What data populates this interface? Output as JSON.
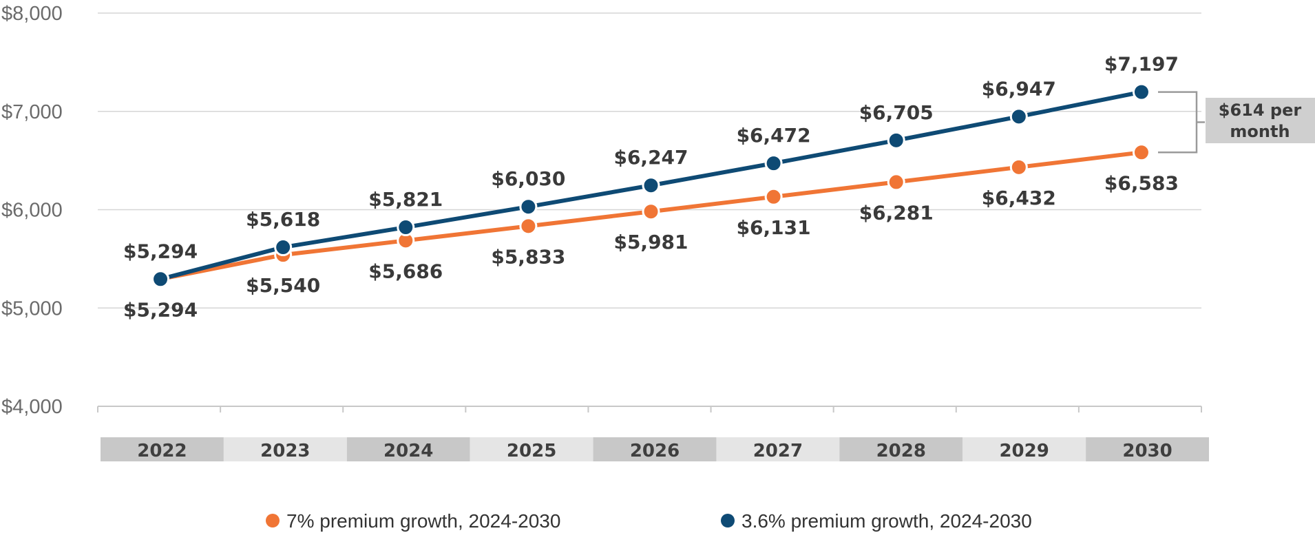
{
  "chart_data": {
    "type": "line",
    "title": "",
    "xlabel": "",
    "ylabel": "",
    "ylim": [
      4000,
      8000
    ],
    "yticks": [
      "$4,000",
      "$5,000",
      "$6,000",
      "$7,000",
      "$8,000"
    ],
    "grid": true,
    "legend_position": "bottom",
    "categories": [
      "2022",
      "2023",
      "2024",
      "2025",
      "2026",
      "2027",
      "2028",
      "2029",
      "2030"
    ],
    "series": [
      {
        "name": "7% premium growth, 2024-2030",
        "color": "#F07535",
        "values": [
          5294,
          5540,
          5686,
          5833,
          5981,
          6131,
          6281,
          6432,
          6583
        ],
        "labels": [
          "$5,294",
          "$5,540",
          "$5,686",
          "$5,833",
          "$5,981",
          "$6,131",
          "$6,281",
          "$6,432",
          "$6,583"
        ]
      },
      {
        "name": "3.6% premium growth, 2024-2030",
        "color": "#0E4A74",
        "values": [
          5294,
          5618,
          5821,
          6030,
          6247,
          6472,
          6705,
          6947,
          7197
        ],
        "labels": [
          "$5,294",
          "$5,618",
          "$5,821",
          "$6,030",
          "$6,247",
          "$6,472",
          "$6,705",
          "$6,947",
          "$7,197"
        ]
      }
    ],
    "annotation": {
      "lines": [
        "$614 per",
        "month"
      ]
    }
  }
}
